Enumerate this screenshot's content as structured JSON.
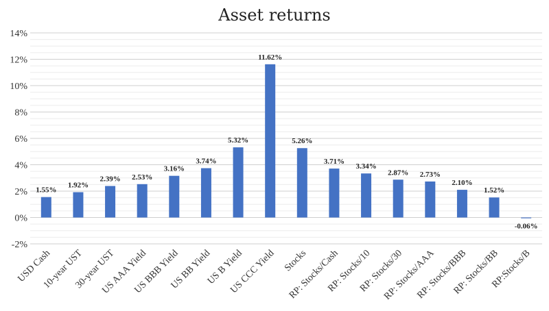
{
  "chart_data": {
    "type": "bar",
    "title": "Asset returns",
    "xlabel": "",
    "ylabel": "",
    "ylim": [
      -2,
      14
    ],
    "ytick_step": 2,
    "y_tick_format": "percent",
    "grid": true,
    "minor_grid": true,
    "legend": "none",
    "bar_color": "#4472C4",
    "categories": [
      "USD Cash",
      "10-year UST",
      "30-year UST",
      "US AAA Yield",
      "US BBB Yield",
      "US BB Yield",
      "US B Yield",
      "US CCC Yield",
      "Stocks",
      "RP: Stocks/Cash",
      "RP: Stocks/10",
      "RP: Stocks/30",
      "RP: Stocks/AAA",
      "RP: Stocks/BBB",
      "RP: Stocks/BB",
      "RP:Stocks/B"
    ],
    "values": [
      1.55,
      1.92,
      2.39,
      2.53,
      3.16,
      3.74,
      5.32,
      11.62,
      5.26,
      3.71,
      3.34,
      2.87,
      2.73,
      2.1,
      1.52,
      -0.06
    ],
    "data_labels": [
      "1.55%",
      "1.92%",
      "2.39%",
      "2.53%",
      "3.16%",
      "3.74%",
      "5.32%",
      "11.62%",
      "5.26%",
      "3.71%",
      "3.34%",
      "2.87%",
      "2.73%",
      "2.10%",
      "1.52%",
      "-0.06%"
    ]
  }
}
